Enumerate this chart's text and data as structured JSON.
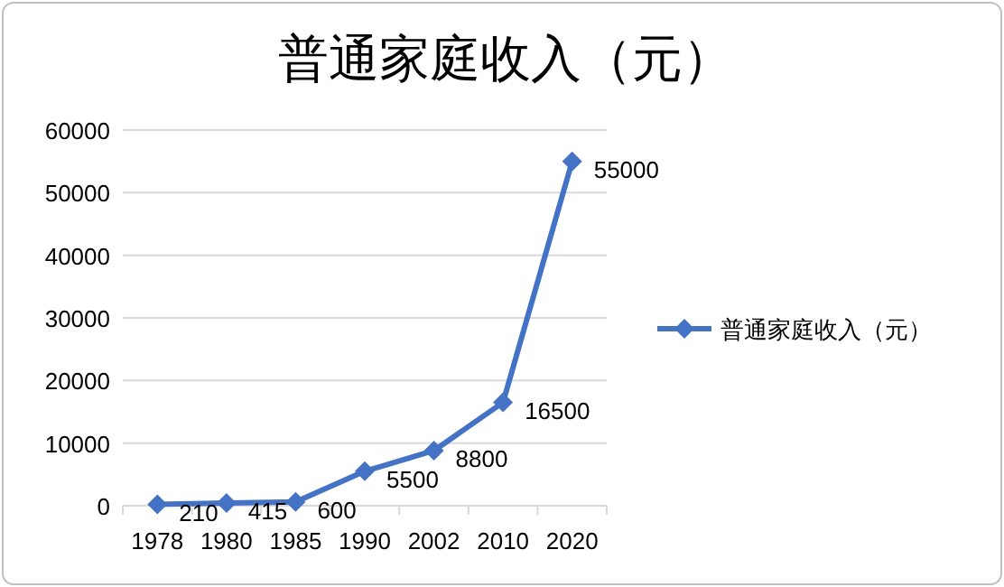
{
  "chart_data": {
    "type": "line",
    "title": "普通家庭收入（元）",
    "categories": [
      "1978",
      "1980",
      "1985",
      "1990",
      "2002",
      "2010",
      "2020"
    ],
    "series": [
      {
        "name": "普通家庭收入（元）",
        "color": "#4472c4",
        "values": [
          210,
          415,
          600,
          5500,
          8800,
          16500,
          55000
        ]
      }
    ],
    "ylim": [
      0,
      60000
    ],
    "yticks": [
      0,
      10000,
      20000,
      30000,
      40000,
      50000,
      60000
    ],
    "grid": "y",
    "legend": "right",
    "marker": "diamond",
    "data_labels": true
  }
}
